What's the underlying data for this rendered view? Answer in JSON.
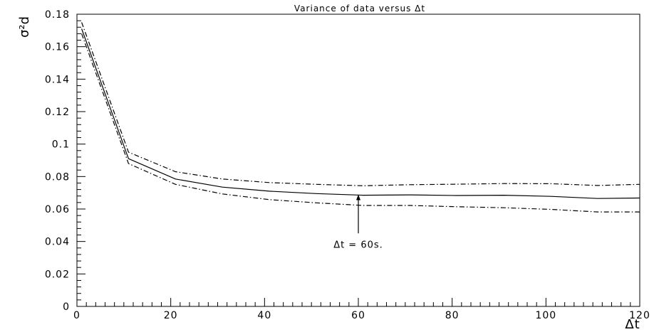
{
  "chart_data": {
    "type": "line",
    "title": "Variance of data versus Δt",
    "xlabel": "Δt",
    "ylabel": "σ²d",
    "xlim": [
      0,
      120
    ],
    "ylim": [
      0,
      0.18
    ],
    "grid": false,
    "x_ticks": [
      0,
      20,
      40,
      60,
      80,
      100,
      120
    ],
    "x_tick_labels": [
      "0",
      "20",
      "40",
      "60",
      "80",
      "100",
      "120"
    ],
    "y_ticks": [
      0,
      0.02,
      0.04,
      0.06,
      0.08,
      0.1,
      0.12,
      0.14,
      0.16,
      0.18
    ],
    "y_tick_labels": [
      "0",
      "0.02",
      "0.04",
      "0.06",
      "0.08",
      "0.1",
      "0.12",
      "0.14",
      "0.16",
      "0.18"
    ],
    "series": [
      {
        "style": "solid",
        "x": [
          1,
          11,
          21,
          31,
          41,
          51,
          61,
          71,
          81,
          91,
          101,
          111,
          120
        ],
        "values": [
          0.171,
          0.091,
          0.0785,
          0.0735,
          0.071,
          0.0695,
          0.0685,
          0.0687,
          0.0683,
          0.0685,
          0.0678,
          0.0665,
          0.0668
        ]
      },
      {
        "style": "dash-dot",
        "x": [
          1,
          11,
          21,
          31,
          41,
          51,
          61,
          71,
          81,
          91,
          101,
          111,
          120
        ],
        "values": [
          0.175,
          0.095,
          0.083,
          0.0785,
          0.0763,
          0.0752,
          0.0743,
          0.075,
          0.0753,
          0.0757,
          0.0756,
          0.0745,
          0.0752
        ]
      },
      {
        "style": "dash-dot",
        "x": [
          1,
          11,
          21,
          31,
          41,
          51,
          61,
          71,
          81,
          91,
          101,
          111,
          120
        ],
        "values": [
          0.168,
          0.088,
          0.0752,
          0.0693,
          0.0658,
          0.0638,
          0.0622,
          0.0622,
          0.0614,
          0.0608,
          0.0598,
          0.0582,
          0.0582
        ]
      }
    ],
    "annotation": {
      "text": "Δt = 60s.",
      "x": 60,
      "arrow_from_y": 0.045,
      "arrow_to_y": 0.069
    }
  }
}
